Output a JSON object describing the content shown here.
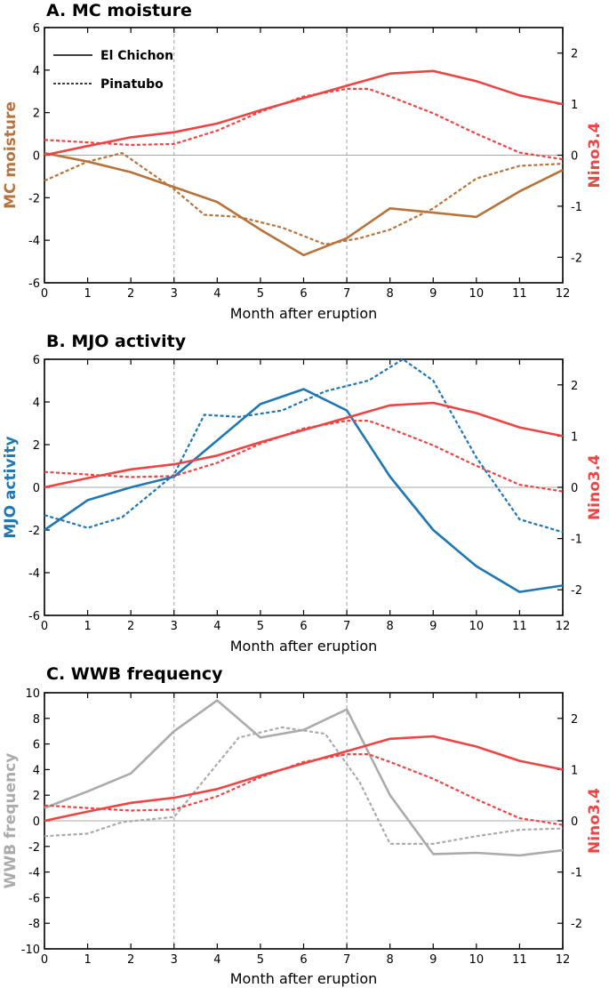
{
  "colors": {
    "moisture": "#B8733A",
    "mjo": "#1F77B4",
    "wwb": "#ABABAB",
    "nino": "#EE4444",
    "grid": "#A8A8A8"
  },
  "chart_data": [
    {
      "type": "line",
      "title": "A. MC moisture",
      "xlabel": "Month after eruption",
      "ylabel_left": "MC moisture",
      "ylabel_right": "Nino3.4",
      "xlim": [
        0,
        12
      ],
      "ylim_left": [
        -6,
        6
      ],
      "ylim_right": [
        -2.5,
        2.5
      ],
      "x_ticks": [
        "0",
        "1",
        "2",
        "3",
        "4",
        "5",
        "6",
        "7",
        "8",
        "9",
        "10",
        "11",
        "12"
      ],
      "yticks_left": [
        "-6",
        "-4",
        "-2",
        "0",
        "2",
        "4",
        "6"
      ],
      "yticks_right": [
        "-2",
        "-1",
        "0",
        "1",
        "2"
      ],
      "yticks_left_values": [
        -6,
        -4,
        -2,
        0,
        2,
        4,
        6
      ],
      "yticks_right_values": [
        -2,
        -1,
        0,
        1,
        2
      ],
      "vlines": [
        3,
        7
      ],
      "legend": [
        "El Chichon",
        "Pinatubo"
      ],
      "series": [
        {
          "name": "El Chichon",
          "axis": "left",
          "style": "solid",
          "color_key": "moisture",
          "x": [
            0,
            1,
            2,
            3,
            4,
            5,
            6,
            7,
            8,
            9,
            10,
            11,
            12
          ],
          "values": [
            0.1,
            -0.3,
            -0.8,
            -1.5,
            -2.2,
            -3.5,
            -4.7,
            -3.9,
            -2.5,
            -2.7,
            -2.9,
            -1.7,
            -0.7
          ]
        },
        {
          "name": "Pinatubo",
          "axis": "left",
          "style": "dashed",
          "color_key": "moisture",
          "x": [
            0,
            1,
            1.8,
            3,
            3.7,
            4.5,
            5.5,
            6.5,
            7.3,
            8,
            9,
            10,
            11,
            12
          ],
          "values": [
            -1.2,
            -0.3,
            0.1,
            -1.6,
            -2.8,
            -2.9,
            -3.4,
            -4.2,
            -3.9,
            -3.5,
            -2.5,
            -1.1,
            -0.5,
            -0.4
          ]
        },
        {
          "name": "Nino3.4 El Chichon",
          "axis": "right",
          "style": "solid",
          "color_key": "nino",
          "x": [
            0,
            1,
            2,
            3,
            4,
            5,
            6,
            7,
            8,
            9,
            10,
            11,
            12
          ],
          "values": [
            0.0,
            0.18,
            0.35,
            0.45,
            0.62,
            0.88,
            1.12,
            1.36,
            1.6,
            1.65,
            1.45,
            1.17,
            1.0
          ]
        },
        {
          "name": "Nino3.4 Pinatubo",
          "axis": "right",
          "style": "dashed",
          "color_key": "nino",
          "x": [
            0,
            1,
            2,
            3,
            4,
            5,
            6,
            7,
            7.5,
            8,
            9,
            10,
            11,
            12
          ],
          "values": [
            0.3,
            0.25,
            0.2,
            0.22,
            0.48,
            0.85,
            1.15,
            1.3,
            1.3,
            1.15,
            0.82,
            0.42,
            0.05,
            -0.08
          ]
        }
      ]
    },
    {
      "type": "line",
      "title": "B. MJO activity",
      "xlabel": "Month after eruption",
      "ylabel_left": "MJO activity",
      "ylabel_right": "Nino3.4",
      "xlim": [
        0,
        12
      ],
      "ylim_left": [
        -6,
        6
      ],
      "ylim_right": [
        -2.5,
        2.5
      ],
      "x_ticks": [
        "0",
        "1",
        "2",
        "3",
        "4",
        "5",
        "6",
        "7",
        "8",
        "9",
        "10",
        "11",
        "12"
      ],
      "yticks_left": [
        "-6",
        "-4",
        "-2",
        "0",
        "2",
        "4",
        "6"
      ],
      "yticks_right": [
        "-2",
        "-1",
        "0",
        "1",
        "2"
      ],
      "yticks_left_values": [
        -6,
        -4,
        -2,
        0,
        2,
        4,
        6
      ],
      "yticks_right_values": [
        -2,
        -1,
        0,
        1,
        2
      ],
      "vlines": [
        3,
        7
      ],
      "series": [
        {
          "name": "El Chichon",
          "axis": "left",
          "style": "solid",
          "color_key": "mjo",
          "x": [
            0,
            1,
            2,
            3,
            4,
            5,
            6,
            7,
            8,
            9,
            10,
            11,
            12
          ],
          "values": [
            -2.0,
            -0.6,
            0.0,
            0.5,
            2.2,
            3.9,
            4.6,
            3.6,
            0.5,
            -2.0,
            -3.7,
            -4.9,
            -4.6
          ]
        },
        {
          "name": "Pinatubo",
          "axis": "left",
          "style": "dashed",
          "color_key": "mjo",
          "x": [
            0,
            1,
            1.8,
            3,
            3.7,
            4.5,
            5.5,
            6.5,
            7.5,
            8.3,
            9,
            10,
            11,
            12
          ],
          "values": [
            -1.3,
            -1.9,
            -1.4,
            0.6,
            3.4,
            3.3,
            3.6,
            4.5,
            5.0,
            6.0,
            5.0,
            1.4,
            -1.5,
            -2.1
          ]
        },
        {
          "name": "Nino3.4 El Chichon",
          "axis": "right",
          "style": "solid",
          "color_key": "nino",
          "x": [
            0,
            1,
            2,
            3,
            4,
            5,
            6,
            7,
            8,
            9,
            10,
            11,
            12
          ],
          "values": [
            0.0,
            0.18,
            0.35,
            0.45,
            0.62,
            0.88,
            1.12,
            1.36,
            1.6,
            1.65,
            1.45,
            1.17,
            1.0
          ]
        },
        {
          "name": "Nino3.4 Pinatubo",
          "axis": "right",
          "style": "dashed",
          "color_key": "nino",
          "x": [
            0,
            1,
            2,
            3,
            4,
            5,
            6,
            7,
            7.5,
            8,
            9,
            10,
            11,
            12
          ],
          "values": [
            0.3,
            0.25,
            0.2,
            0.22,
            0.48,
            0.85,
            1.15,
            1.3,
            1.3,
            1.15,
            0.82,
            0.42,
            0.05,
            -0.08
          ]
        }
      ]
    },
    {
      "type": "line",
      "title": "C. WWB frequency",
      "xlabel": "Month after eruption",
      "ylabel_left": "WWB frequency",
      "ylabel_right": "Nino3.4",
      "xlim": [
        0,
        12
      ],
      "ylim_left": [
        -10,
        10
      ],
      "ylim_right": [
        -2.5,
        2.5
      ],
      "x_ticks": [
        "0",
        "1",
        "2",
        "3",
        "4",
        "5",
        "6",
        "7",
        "8",
        "9",
        "10",
        "11",
        "12"
      ],
      "yticks_left": [
        "-10",
        "-8",
        "-6",
        "-4",
        "-2",
        "0",
        "2",
        "4",
        "6",
        "8",
        "10"
      ],
      "yticks_right": [
        "-2",
        "-1",
        "0",
        "1",
        "2"
      ],
      "yticks_left_values": [
        -10,
        -8,
        -6,
        -4,
        -2,
        0,
        2,
        4,
        6,
        8,
        10
      ],
      "yticks_right_values": [
        -2,
        -1,
        0,
        1,
        2
      ],
      "vlines": [
        3,
        7
      ],
      "series": [
        {
          "name": "El Chichon",
          "axis": "left",
          "style": "solid",
          "color_key": "wwb",
          "x": [
            0,
            1,
            2,
            3,
            4,
            5,
            6,
            7,
            8,
            9,
            10,
            11,
            12
          ],
          "values": [
            1.0,
            2.3,
            3.7,
            7.0,
            9.4,
            6.5,
            7.1,
            8.7,
            2.0,
            -2.6,
            -2.5,
            -2.7,
            -2.3
          ]
        },
        {
          "name": "Pinatubo",
          "axis": "left",
          "style": "dashed",
          "color_key": "wwb",
          "x": [
            0,
            1,
            1.8,
            3,
            3.7,
            4.5,
            5.5,
            6.5,
            7.3,
            8,
            9,
            10,
            11,
            12
          ],
          "values": [
            -1.2,
            -1.0,
            -0.1,
            0.3,
            3.2,
            6.5,
            7.3,
            6.8,
            3.0,
            -1.8,
            -1.8,
            -1.2,
            -0.7,
            -0.6
          ]
        },
        {
          "name": "Nino3.4 El Chichon",
          "axis": "right",
          "style": "solid",
          "color_key": "nino",
          "x": [
            0,
            1,
            2,
            3,
            4,
            5,
            6,
            7,
            8,
            9,
            10,
            11,
            12
          ],
          "values": [
            0.0,
            0.18,
            0.35,
            0.45,
            0.62,
            0.88,
            1.12,
            1.36,
            1.6,
            1.65,
            1.45,
            1.17,
            1.0
          ]
        },
        {
          "name": "Nino3.4 Pinatubo",
          "axis": "right",
          "style": "dashed",
          "color_key": "nino",
          "x": [
            0,
            1,
            2,
            3,
            4,
            5,
            6,
            7,
            7.5,
            8,
            9,
            10,
            11,
            12
          ],
          "values": [
            0.3,
            0.25,
            0.2,
            0.22,
            0.48,
            0.85,
            1.15,
            1.3,
            1.3,
            1.15,
            0.82,
            0.42,
            0.05,
            -0.08
          ]
        }
      ]
    }
  ]
}
